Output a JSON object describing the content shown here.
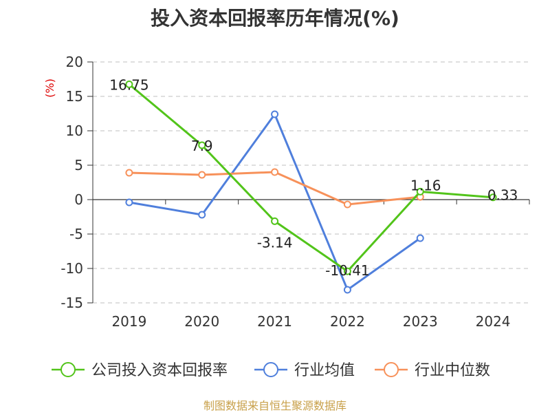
{
  "chart_data": {
    "type": "line",
    "title": "投入资本回报率历年情况(%)",
    "ylabel": "(%)",
    "ylabel_color": "#dd0000",
    "categories": [
      "2019",
      "2020",
      "2021",
      "2022",
      "2023",
      "2024"
    ],
    "ylim": [
      -15,
      20
    ],
    "yticks": [
      20,
      15,
      10,
      5,
      0,
      -5,
      -10,
      -15
    ],
    "grid": true,
    "legend_position": "bottom",
    "series": [
      {
        "name": "公司投入资本回报率",
        "color": "#52c41a",
        "values": [
          16.75,
          7.9,
          -3.14,
          -10.41,
          1.16,
          0.33
        ],
        "labels": [
          "16.75",
          "7.9",
          "-3.14",
          "-10.41",
          "1.16",
          "0.33"
        ]
      },
      {
        "name": "行业均值",
        "color": "#4f7fdc",
        "values": [
          -0.4,
          -2.2,
          12.4,
          -13.1,
          -5.6,
          null
        ]
      },
      {
        "name": "行业中位数",
        "color": "#f7915a",
        "values": [
          3.9,
          3.6,
          4.0,
          -0.7,
          0.4,
          null
        ]
      }
    ]
  },
  "footer": {
    "source": "制图数据来自恒生聚源数据库",
    "source_color": "#c8a04a"
  }
}
